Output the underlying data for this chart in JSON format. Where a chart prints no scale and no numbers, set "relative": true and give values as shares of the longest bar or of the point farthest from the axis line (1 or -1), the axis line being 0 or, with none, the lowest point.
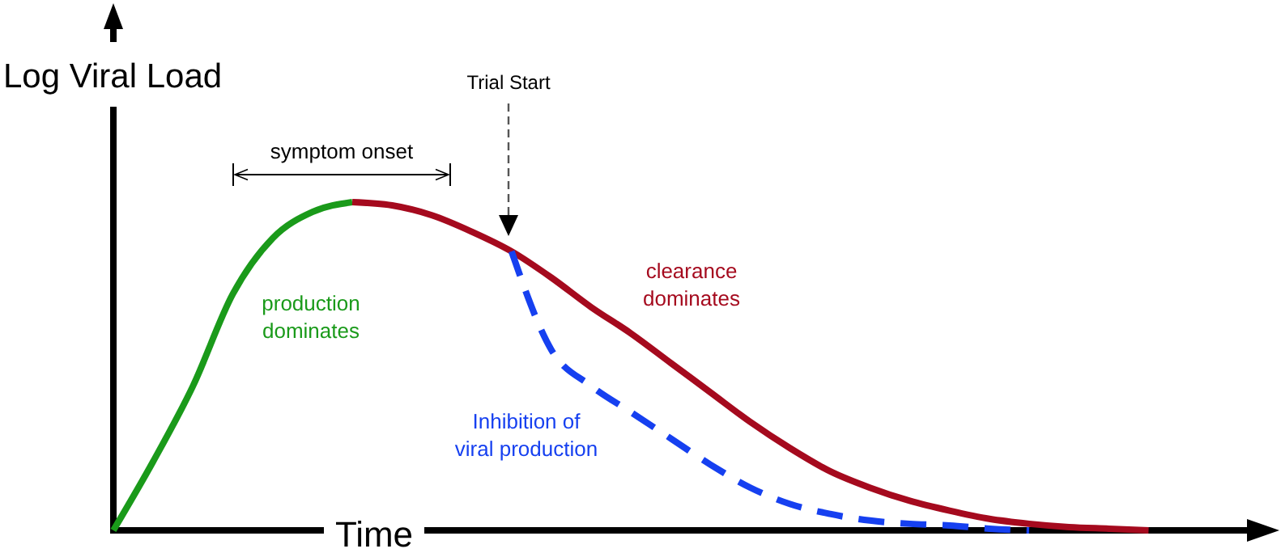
{
  "chart_data": {
    "type": "line",
    "relative": true,
    "xlabel": "Time",
    "ylabel": "Log Viral Load",
    "categories": [
      null,
      null,
      null,
      null,
      null,
      null,
      null,
      null,
      null,
      null,
      null,
      null,
      null,
      null,
      null,
      null,
      null,
      null,
      null,
      null,
      null,
      null,
      null,
      null,
      null,
      null,
      null,
      null,
      null,
      null
    ],
    "marker": "none",
    "series": [
      {
        "name": "production dominates",
        "color": "#1a9a1a",
        "line_style": "solid",
        "values": [
          0,
          0.21,
          0.44,
          0.72,
          0.89,
          0.97,
          1,
          null,
          null,
          null,
          null,
          null,
          null,
          null,
          null,
          null,
          null,
          null,
          null,
          null,
          null,
          null,
          null,
          null,
          null,
          null,
          null,
          null,
          null,
          null
        ]
      },
      {
        "name": "clearance dominates",
        "color": "#a50a1e",
        "line_style": "solid",
        "values": [
          null,
          null,
          null,
          null,
          null,
          null,
          1,
          0.99,
          0.96,
          0.91,
          0.85,
          0.77,
          0.68,
          0.6,
          0.51,
          0.42,
          0.33,
          0.25,
          0.18,
          0.13,
          0.09,
          0.06,
          0.035,
          0.02,
          0.01,
          0.005,
          0,
          null,
          null,
          null
        ]
      },
      {
        "name": "Inhibition of viral production",
        "color": "#1640f0",
        "line_style": "dashed",
        "values": [
          null,
          null,
          null,
          null,
          null,
          null,
          null,
          null,
          null,
          null,
          0.85,
          0.55,
          0.44,
          0.36,
          0.28,
          0.2,
          0.13,
          0.08,
          0.05,
          0.03,
          0.02,
          0.015,
          0.005,
          0,
          null,
          null,
          null,
          null,
          null,
          null
        ]
      }
    ],
    "annotations": [
      "symptom onset",
      "Trial Start"
    ]
  }
}
